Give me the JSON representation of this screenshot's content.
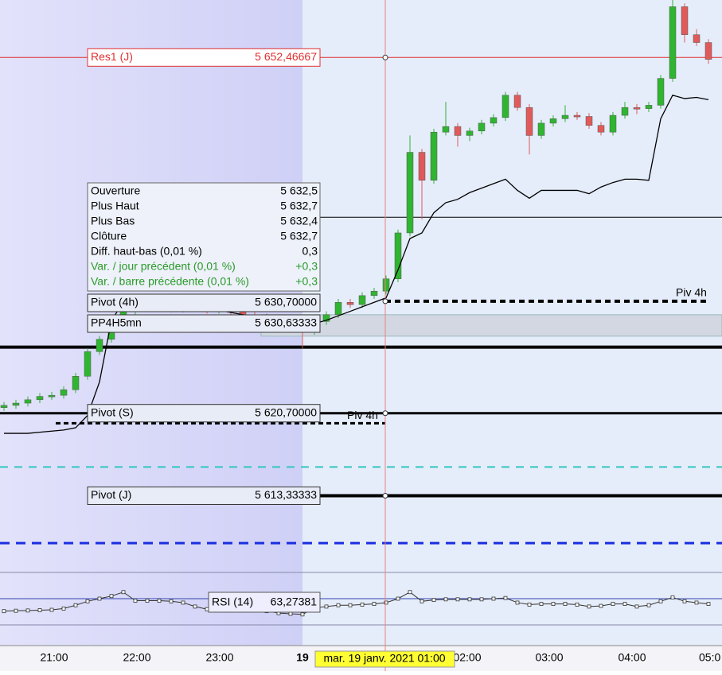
{
  "chart_data": {
    "type": "candlestick",
    "ylim": [
      5607.9,
      5657.6
    ],
    "candles": [
      [
        5621.2,
        5621.7,
        5620.9,
        5621.4
      ],
      [
        5621.4,
        5621.9,
        5621.1,
        5621.6
      ],
      [
        5621.6,
        5622.2,
        5621.3,
        5621.9
      ],
      [
        5621.9,
        5622.5,
        5621.6,
        5622.2
      ],
      [
        5622.2,
        5622.6,
        5621.9,
        5622.3
      ],
      [
        5622.3,
        5623.1,
        5622.0,
        5622.8
      ],
      [
        5622.8,
        5624.3,
        5622.5,
        5624.0
      ],
      [
        5624.0,
        5626.5,
        5623.7,
        5626.2
      ],
      [
        5626.2,
        5627.6,
        5625.9,
        5627.3
      ],
      [
        5627.3,
        5628.7,
        5627.0,
        5628.4
      ],
      [
        5628.4,
        5630.1,
        5628.1,
        5629.8
      ],
      [
        5629.8,
        5630.6,
        5629.5,
        5630.3
      ],
      [
        5630.3,
        5630.8,
        5630.0,
        5630.5
      ],
      [
        5630.5,
        5630.8,
        5629.9,
        5630.2
      ],
      [
        5630.2,
        5630.5,
        5629.7,
        5630.0
      ],
      [
        5630.0,
        5630.7,
        5629.7,
        5630.4
      ],
      [
        5630.4,
        5630.7,
        5629.8,
        5630.1
      ],
      [
        5630.1,
        5630.4,
        5629.6,
        5629.9
      ],
      [
        5629.9,
        5630.4,
        5629.6,
        5630.1
      ],
      [
        5630.1,
        5630.4,
        5629.5,
        5629.8
      ],
      [
        5629.8,
        5630.1,
        5629.2,
        5629.5
      ],
      [
        5629.5,
        5629.8,
        5629.0,
        5629.3
      ],
      [
        5629.3,
        5629.6,
        5628.7,
        5629.0
      ],
      [
        5629.0,
        5629.3,
        5628.3,
        5628.6
      ],
      [
        5628.6,
        5628.9,
        5628.0,
        5628.3
      ],
      [
        5628.3,
        5628.6,
        5626.5,
        5628.0
      ],
      [
        5628.0,
        5629.2,
        5627.7,
        5628.9
      ],
      [
        5628.9,
        5629.8,
        5628.6,
        5629.5
      ],
      [
        5629.5,
        5630.9,
        5629.2,
        5630.6
      ],
      [
        5630.6,
        5630.9,
        5630.1,
        5630.4
      ],
      [
        5630.4,
        5631.5,
        5630.1,
        5631.2
      ],
      [
        5631.2,
        5631.9,
        5630.9,
        5631.6
      ],
      [
        5631.6,
        5633.0,
        5631.3,
        5632.7
      ],
      [
        5632.7,
        5637.1,
        5632.4,
        5636.8
      ],
      [
        5636.8,
        5645.5,
        5636.5,
        5644.0
      ],
      [
        5644.0,
        5644.3,
        5638.0,
        5641.5
      ],
      [
        5641.5,
        5646.1,
        5641.2,
        5645.8
      ],
      [
        5645.8,
        5648.5,
        5645.5,
        5646.3
      ],
      [
        5646.3,
        5646.6,
        5644.5,
        5645.5
      ],
      [
        5645.5,
        5646.2,
        5645.0,
        5645.9
      ],
      [
        5645.9,
        5646.9,
        5645.6,
        5646.6
      ],
      [
        5646.6,
        5647.4,
        5646.3,
        5647.1
      ],
      [
        5647.1,
        5649.4,
        5646.8,
        5649.1
      ],
      [
        5649.1,
        5649.4,
        5647.7,
        5648.0
      ],
      [
        5648.0,
        5648.3,
        5643.8,
        5645.5
      ],
      [
        5645.5,
        5646.9,
        5645.2,
        5646.6
      ],
      [
        5646.6,
        5647.3,
        5646.3,
        5647.0
      ],
      [
        5647.0,
        5648.2,
        5646.7,
        5647.3
      ],
      [
        5647.3,
        5647.6,
        5646.9,
        5647.2
      ],
      [
        5647.2,
        5647.5,
        5646.1,
        5646.4
      ],
      [
        5646.4,
        5646.7,
        5645.5,
        5645.8
      ],
      [
        5645.8,
        5647.6,
        5645.5,
        5647.3
      ],
      [
        5647.3,
        5648.5,
        5647.0,
        5648.0
      ],
      [
        5648.0,
        5648.3,
        5647.4,
        5647.9
      ],
      [
        5647.9,
        5648.5,
        5647.6,
        5648.2
      ],
      [
        5648.2,
        5650.9,
        5647.9,
        5650.6
      ],
      [
        5650.6,
        5658.0,
        5650.3,
        5657.0
      ],
      [
        5657.0,
        5657.3,
        5653.8,
        5654.5
      ],
      [
        5654.5,
        5655.0,
        5653.5,
        5653.8
      ],
      [
        5653.8,
        5654.1,
        5651.9,
        5652.3
      ]
    ],
    "up_color": "#2fb52f",
    "down_color": "#e05a5a",
    "ma": [
      5618.9,
      5618.9,
      5618.9,
      5619.0,
      5619.1,
      5619.2,
      5619.4,
      5620.5,
      5623.5,
      5629.0,
      5630.6,
      5630.6,
      5630.5,
      5630.4,
      5630.3,
      5630.2,
      5630.1,
      5630.0,
      5629.9,
      5629.7,
      5629.5,
      5629.3,
      5629.1,
      5628.9,
      5628.7,
      5628.5,
      5628.7,
      5629.0,
      5629.4,
      5629.8,
      5630.2,
      5630.6,
      5631.0,
      5633.5,
      5636.3,
      5636.8,
      5638.6,
      5639.5,
      5639.8,
      5640.4,
      5640.8,
      5641.2,
      5641.6,
      5640.6,
      5639.9,
      5640.6,
      5640.6,
      5640.6,
      5640.6,
      5640.3,
      5640.9,
      5641.3,
      5641.6,
      5641.6,
      5641.5,
      5647.0,
      5649.1,
      5648.8,
      5648.9,
      5648.7
    ],
    "rsi": {
      "label": "RSI (14)",
      "value_label": "63,27381",
      "ylim": [
        30,
        70
      ],
      "levels": [
        30,
        50,
        70
      ],
      "values": [
        40.5,
        40.8,
        41,
        41.2,
        41.5,
        42.5,
        45,
        48,
        50,
        52,
        55,
        48.5,
        48.5,
        48.5,
        48,
        47,
        44,
        42,
        42,
        42,
        41.5,
        41,
        40.5,
        39,
        38.5,
        38,
        43,
        44,
        45,
        45,
        45.5,
        46,
        47,
        50,
        55,
        48,
        49,
        49.5,
        49.5,
        49.5,
        49.5,
        50,
        50.5,
        47,
        45.5,
        46,
        46,
        46,
        45.5,
        44,
        44.5,
        46,
        46,
        44,
        45,
        48,
        51,
        48,
        47,
        46
      ]
    },
    "levels": [
      {
        "label": "Res1 (J)",
        "value": 5652.46667,
        "value_label": "5 652,46667",
        "color": "#e03030"
      },
      {
        "label": "Pivot (4h)",
        "value": 5630.7,
        "value_label": "5 630,70000",
        "color": "#000000"
      },
      {
        "label": "PP4H5mn",
        "value": 5630.63333,
        "value_label": "5 630,63333",
        "color": "#000000"
      },
      {
        "label": "Pivot (S)",
        "value": 5620.7,
        "value_label": "5 620,70000",
        "color": "#000000"
      },
      {
        "label": "Pivot (J)",
        "value": 5613.33333,
        "value_label": "5 613,33333",
        "color": "#000000"
      }
    ],
    "lines": [
      {
        "value": 5626.6,
        "color": "#000000"
      },
      {
        "value": 5638.2,
        "color": "#000000"
      },
      {
        "value": 5615.9,
        "color": "#33c6c0"
      },
      {
        "value": 5609.1,
        "color": "#1a2ee0"
      },
      {
        "value": 5619.8,
        "color": "#000000"
      }
    ],
    "piv_label": "Piv 4h",
    "piv_label_2": "Piv 4h",
    "tooltip": [
      {
        "label": "Ouverture",
        "value": "5 632,5"
      },
      {
        "label": "Plus Haut",
        "value": "5 632,7"
      },
      {
        "label": "Plus Bas",
        "value": "5 632,4"
      },
      {
        "label": "Clôture",
        "value": "5 632,7"
      },
      {
        "label": "Diff. haut-bas (0,01 %)",
        "value": "0,3"
      },
      {
        "label": "Var. / jour précédent (0,01 %)",
        "value": "+0,3"
      },
      {
        "label": "Var. / barre précédente (0,01 %)",
        "value": "+0,3"
      }
    ],
    "time_labels": [
      "21:00",
      "22:00",
      "23:00",
      "19",
      "02:00",
      "03:00",
      "04:00",
      "05:0"
    ],
    "crosshair_label": "mar. 19 janv. 2021 01:00"
  }
}
